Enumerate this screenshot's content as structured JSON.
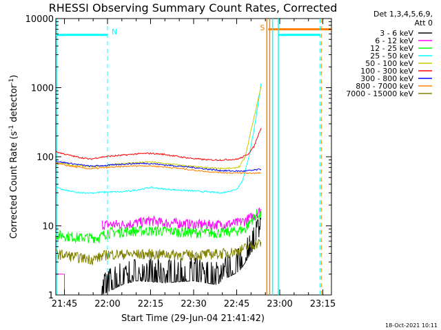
{
  "chart_data": {
    "type": "line",
    "title": "RHESSI Observing Summary Count Rates, Corrected",
    "xlabel": "Start Time (29-Jun-04 21:41:42)",
    "ylabel_main": "Corrected Count Rate (s",
    "ylabel_sup1": "-1",
    "ylabel_mid": " detector",
    "ylabel_sup2": "-1",
    "ylabel_end": ")",
    "yscale": "log",
    "ylim": [
      1,
      10000
    ],
    "xlim_minutes": [
      -18,
      78
    ],
    "x_ticks": [
      {
        "t": -15,
        "label": "21:45"
      },
      {
        "t": 0,
        "label": "22:00"
      },
      {
        "t": 15,
        "label": "22:15"
      },
      {
        "t": 30,
        "label": "22:30"
      },
      {
        "t": 45,
        "label": "22:45"
      },
      {
        "t": 60,
        "label": "23:00"
      },
      {
        "t": 75,
        "label": "23:15"
      }
    ],
    "y_ticks": [
      {
        "v": 1,
        "label": "1"
      },
      {
        "v": 10,
        "label": "10"
      },
      {
        "v": 100,
        "label": "100"
      },
      {
        "v": 1000,
        "label": "1000"
      },
      {
        "v": 10000,
        "label": "10000"
      }
    ],
    "legend": {
      "header1": "Det 1,3,4,5,6,9,",
      "header2": "Att 0",
      "position": "top-right"
    },
    "series": [
      {
        "name": "3 - 6 keV",
        "color": "#000000",
        "style": "noisy",
        "t": [
          -2,
          5,
          10,
          20,
          30,
          38,
          42,
          46,
          50,
          53.5
        ],
        "v": [
          1,
          1.4,
          1.6,
          1.5,
          1.6,
          1.4,
          1.8,
          2.2,
          4,
          8
        ]
      },
      {
        "name": "6 - 12 keV",
        "color": "#ff00ff",
        "style": "noisy",
        "t": [
          -2,
          5,
          10,
          15,
          20,
          25,
          30,
          35,
          40,
          45,
          48,
          51,
          53.5
        ],
        "v": [
          10.5,
          10.5,
          11,
          12,
          11,
          11,
          10.5,
          10.5,
          10.5,
          11,
          12,
          14,
          17
        ]
      },
      {
        "name": "12 - 25 keV",
        "color": "#00ff00",
        "style": "noisy",
        "t": [
          -18,
          -10,
          -3,
          0,
          10,
          20,
          30,
          40,
          45,
          48,
          50,
          52,
          53.5
        ],
        "v": [
          7.5,
          6.8,
          6.8,
          8,
          8.5,
          8.5,
          8,
          8,
          8.5,
          9,
          12,
          15,
          14
        ]
      },
      {
        "name": "25 - 50 keV",
        "color": "#00ffff",
        "style": "smooth",
        "t": [
          -18,
          -15,
          -10,
          -5,
          0,
          5,
          10,
          15,
          20,
          25,
          30,
          35,
          40,
          45,
          47,
          49,
          51,
          52.5,
          53.5
        ],
        "v": [
          36,
          33,
          30,
          30,
          31,
          31,
          33,
          36,
          34,
          33,
          32,
          31,
          30,
          34,
          45,
          90,
          240,
          600,
          1150
        ]
      },
      {
        "name": "50 - 100 keV",
        "color": "#c8c800",
        "style": "smooth",
        "t": [
          -18,
          -12,
          -6,
          0,
          5,
          10,
          15,
          20,
          25,
          30,
          35,
          40,
          44,
          46,
          48,
          50,
          52,
          53.5
        ],
        "v": [
          82,
          75,
          72,
          74,
          80,
          82,
          84,
          80,
          76,
          72,
          69,
          68,
          68,
          72,
          100,
          240,
          550,
          1050
        ]
      },
      {
        "name": "100 - 300 keV",
        "color": "#ff0000",
        "style": "smooth",
        "t": [
          -18,
          -12,
          -6,
          -3,
          0,
          5,
          10,
          15,
          20,
          25,
          30,
          35,
          40,
          45,
          47,
          49,
          51,
          53.5
        ],
        "v": [
          118,
          102,
          92,
          98,
          101,
          105,
          110,
          112,
          108,
          100,
          94,
          90,
          90,
          92,
          98,
          110,
          140,
          265
        ]
      },
      {
        "name": "300 - 800 keV",
        "color": "#0000ff",
        "style": "smooth",
        "t": [
          -18,
          -12,
          -6,
          0,
          5,
          10,
          15,
          20,
          25,
          30,
          35,
          40,
          45,
          48,
          51,
          53.5
        ],
        "v": [
          86,
          79,
          73,
          75,
          78,
          80,
          80,
          76,
          73,
          70,
          66,
          63,
          62,
          62,
          64,
          66
        ]
      },
      {
        "name": "800 - 7000 keV",
        "color": "#ff8000",
        "style": "smooth",
        "t": [
          -18,
          -12,
          -6,
          0,
          5,
          10,
          15,
          20,
          25,
          30,
          35,
          40,
          45,
          48,
          51,
          53.5
        ],
        "v": [
          80,
          72,
          67,
          70,
          72,
          74,
          74,
          71,
          68,
          64,
          61,
          59,
          58,
          58,
          58,
          58
        ]
      },
      {
        "name": "7000 - 15000 keV",
        "color": "#808000",
        "style": "noisy",
        "t": [
          -18,
          -10,
          -5,
          0,
          10,
          20,
          30,
          40,
          45,
          50,
          53.5
        ],
        "v": [
          4,
          3.5,
          3.3,
          3.9,
          3.9,
          3.9,
          3.8,
          4,
          4.3,
          5.2,
          5.8
        ]
      }
    ],
    "annotations": {
      "night_marker_label": "N",
      "night_marker_t": 0,
      "saa_marker_label": "S",
      "saa_marker_t": 56,
      "saa_end_t": 74,
      "night_bar_left": {
        "t0": -18,
        "t1": 0,
        "v": 5800
      },
      "night_bar_right": {
        "t0": 59.5,
        "t1": 74,
        "v": 5800
      },
      "saa_bar": {
        "t0": 56,
        "t1": 78,
        "v": 7000
      },
      "cyan_vertical_t": [
        -18,
        57.5,
        59.5
      ],
      "orange_vertical_t": [
        55.5,
        56.5
      ],
      "magenta_drop_t": -15
    },
    "timestamp": "18-Oct-2021 10:11"
  }
}
